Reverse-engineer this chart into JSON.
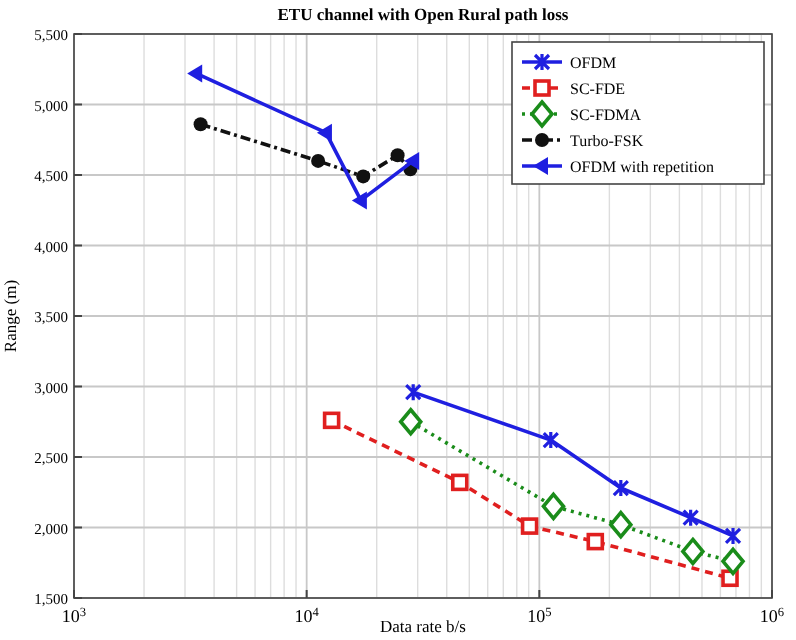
{
  "chart_data": {
    "type": "line",
    "title": "ETU channel with Open Rural path loss",
    "xlabel": "Data rate b/s",
    "ylabel": "Range (m)",
    "log": "x",
    "grid": true,
    "legend": "top right",
    "xlim": [
      1000,
      1000000
    ],
    "xticks": [
      {
        "value": 1000,
        "label": "10$^{3}$"
      },
      {
        "value": 10000,
        "label": "10$^{4}$"
      },
      {
        "value": 100000,
        "label": "10$^{5}$"
      },
      {
        "value": 1000000,
        "label": "10$^{6}$"
      }
    ],
    "ylim": [
      1500,
      5500
    ],
    "yticks": [
      {
        "value": 1500,
        "label": "1,500"
      },
      {
        "value": 2000,
        "label": "2,000"
      },
      {
        "value": 2500,
        "label": "2,500"
      },
      {
        "value": 3000,
        "label": "3,000"
      },
      {
        "value": 3500,
        "label": "3,500"
      },
      {
        "value": 4000,
        "label": "4,000"
      },
      {
        "value": 4500,
        "label": "4,500"
      },
      {
        "value": 5000,
        "label": "5,000"
      },
      {
        "value": 5500,
        "label": "5,500"
      }
    ],
    "series": [
      {
        "name": "OFDM",
        "color": "#1f1fe0",
        "marker": "cross",
        "line_style": "solid",
        "x": [
          28700,
          112000,
          224000,
          447000,
          680000
        ],
        "values": [
          2960,
          2620,
          2280,
          2070,
          1940
        ]
      },
      {
        "name": "SC-FDE",
        "color": "#e01f1f",
        "marker": "square",
        "line_style": "dashed",
        "x": [
          12800,
          45500,
          90800,
          174000,
          660000
        ],
        "values": [
          2760,
          2320,
          2010,
          1900,
          1640
        ]
      },
      {
        "name": "SC-FDMA",
        "color": "#1a8c1a",
        "marker": "diamond",
        "line_style": "dotted",
        "x": [
          28000,
          115000,
          224000,
          457000,
          680000
        ],
        "values": [
          2750,
          2150,
          2020,
          1830,
          1760
        ]
      },
      {
        "name": "Turbo-FSK",
        "color": "#111111",
        "marker": "circle",
        "line_style": "dashdot",
        "x": [
          3500,
          11200,
          17500,
          24600,
          27900
        ],
        "values": [
          4860,
          4600,
          4490,
          4640,
          4540
        ]
      },
      {
        "name": "OFDM with repetition",
        "color": "#1f1fe0",
        "marker": "triangle",
        "line_style": "solid",
        "x": [
          3350,
          12100,
          17100,
          28700
        ],
        "values": [
          5220,
          4800,
          4320,
          4600
        ]
      }
    ]
  }
}
